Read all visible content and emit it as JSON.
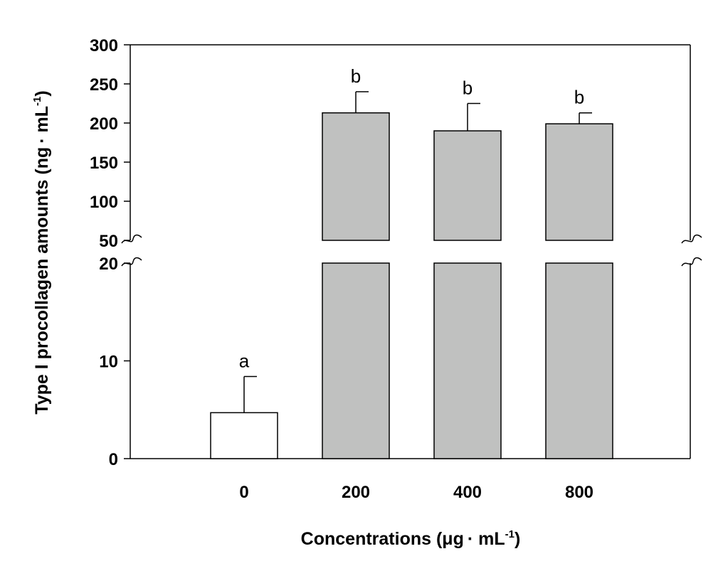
{
  "chart_data": {
    "type": "bar",
    "xlabel_text": "Concentrations (μg",
    "xlabel_dot": "·",
    "xlabel_unit": " mL",
    "xlabel_sup": "-1",
    "xlabel_close": ")",
    "ylabel_text": "Type I procollagen amounts (ng",
    "ylabel_dot": "·",
    "ylabel_unit": " mL",
    "ylabel_sup": "-1",
    "ylabel_close": ")",
    "categories": [
      "0",
      "200",
      "400",
      "800"
    ],
    "values": [
      4.7,
      213,
      190,
      199
    ],
    "errors": [
      3.7,
      27,
      35,
      14
    ],
    "significance": [
      "a",
      "b",
      "b",
      "b"
    ],
    "bar_colors": [
      "#ffffff",
      "#c0c1c0",
      "#c0c1c0",
      "#c0c1c0"
    ],
    "axis_break": {
      "lower_range": [
        0,
        20
      ],
      "upper_range": [
        50,
        300
      ]
    },
    "lower_ticks": [
      "0",
      "10",
      "20"
    ],
    "upper_ticks": [
      "50",
      "100",
      "150",
      "200",
      "250",
      "300"
    ],
    "grid": false,
    "legend": "none"
  }
}
